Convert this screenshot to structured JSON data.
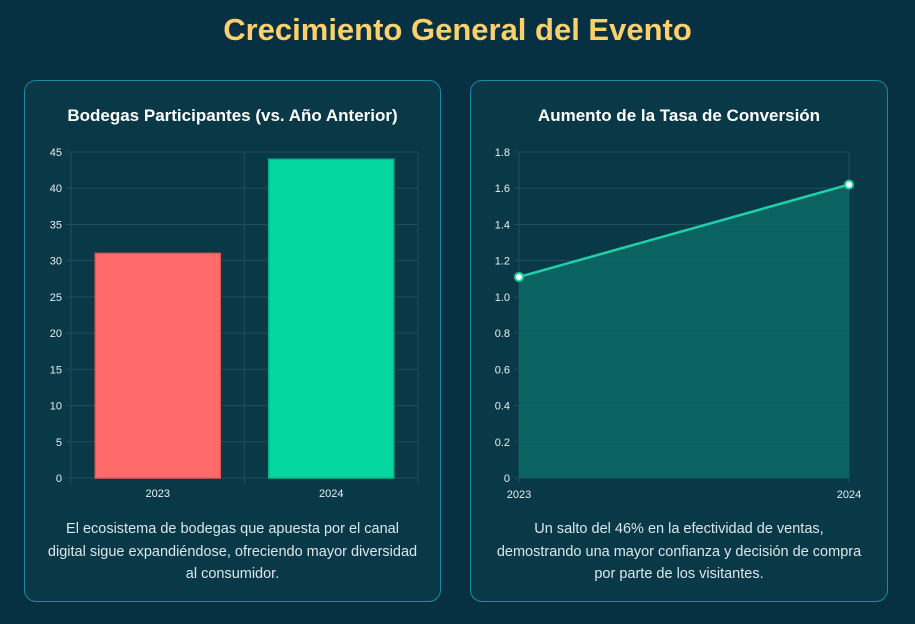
{
  "page": {
    "title": "Crecimiento General del Evento"
  },
  "colors": {
    "background": "#073142",
    "card_border": "#1d8aa6",
    "title": "#fcd06b",
    "bar_2023": "#ff6b6b",
    "bar_2024": "#06d6a0",
    "line": "#1fd1a8",
    "area": "#0b6b66",
    "grid": "#1c4e5c"
  },
  "cards": [
    {
      "title": "Bodegas Participantes (vs. Año Anterior)",
      "caption": "El ecosistema de bodegas que apuesta por el canal digital sigue expandiéndose, ofreciendo mayor diversidad al consumidor."
    },
    {
      "title": "Aumento de la Tasa de Conversión",
      "caption": "Un salto del 46% en la efectividad de ventas, demostrando una mayor confianza y decisión de compra por parte de los visitantes."
    }
  ],
  "chart_data": [
    {
      "type": "bar",
      "title": "Bodegas Participantes (vs. Año Anterior)",
      "categories": [
        "2023",
        "2024"
      ],
      "values": [
        31,
        44
      ],
      "ylim": [
        0,
        45
      ],
      "yticks": [
        0,
        5,
        10,
        15,
        20,
        25,
        30,
        35,
        40,
        45
      ],
      "grid": true,
      "legend": "none"
    },
    {
      "type": "area",
      "title": "Aumento de la Tasa de Conversión",
      "x": [
        "2023",
        "2024"
      ],
      "values": [
        1.11,
        1.62
      ],
      "ylim": [
        0,
        1.8
      ],
      "yticks": [
        0,
        0.2,
        0.4,
        0.6,
        0.8,
        1.0,
        1.2,
        1.4,
        1.6,
        1.8
      ],
      "ytick_labels": [
        "0",
        "0.2",
        "0.4",
        "0.6",
        "0.8",
        "1.0",
        "1.2",
        "1.4",
        "1.6",
        "1.8"
      ],
      "grid": true,
      "legend": "none"
    }
  ]
}
